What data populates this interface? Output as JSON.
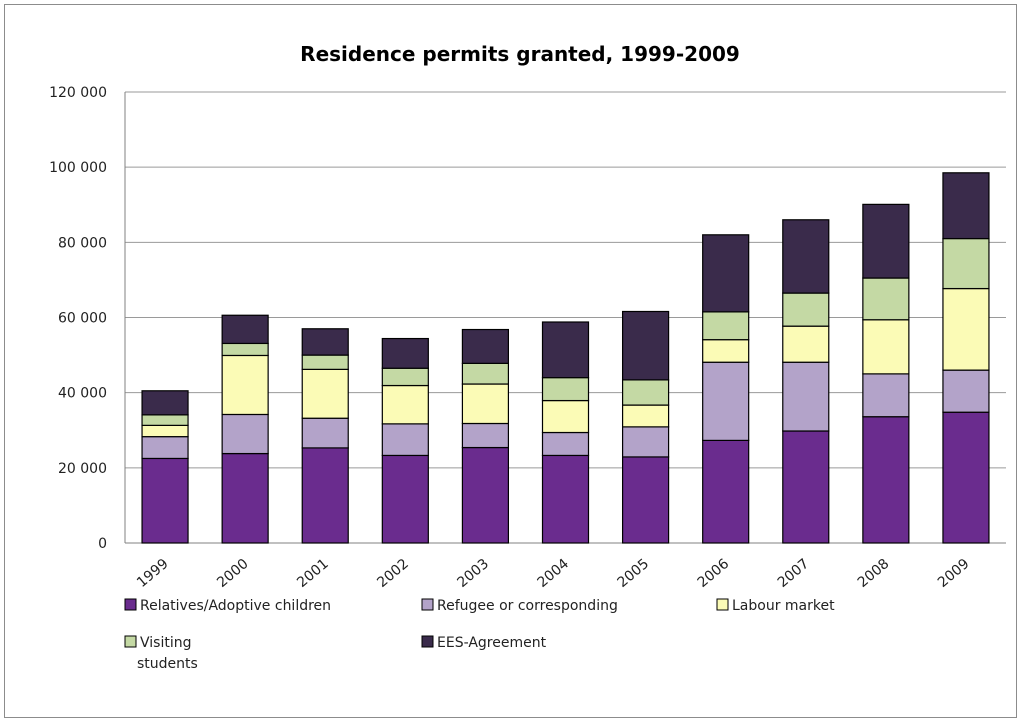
{
  "chart_data": {
    "type": "bar",
    "stacked": true,
    "title": "Residence permits granted, 1999-2009",
    "xlabel": "",
    "ylabel": "",
    "ylim": [
      0,
      120000
    ],
    "yticks": [
      0,
      20000,
      40000,
      60000,
      80000,
      100000,
      120000
    ],
    "ytick_labels": [
      "0",
      "20 000",
      "40 000",
      "60 000",
      "80 000",
      "100 000",
      "120 000"
    ],
    "grid": true,
    "legend_position": "bottom",
    "categories": [
      "1999",
      "2000",
      "2001",
      "2002",
      "2003",
      "2004",
      "2005",
      "2006",
      "2007",
      "2008",
      "2009"
    ],
    "series": [
      {
        "name": "Relatives/Adoptive children",
        "color": "#6a2c8e",
        "values": [
          22500,
          23800,
          25300,
          23300,
          25400,
          23300,
          22900,
          27300,
          29800,
          33600,
          34800
        ]
      },
      {
        "name": "Refugee or corresponding",
        "color": "#b3a3c9",
        "values": [
          5800,
          10400,
          7900,
          8400,
          6400,
          6100,
          8000,
          20800,
          18300,
          11400,
          11200
        ]
      },
      {
        "name": "Labour market",
        "color": "#fbfbb6",
        "values": [
          3000,
          15700,
          13000,
          10200,
          10500,
          8500,
          5800,
          6000,
          9600,
          14400,
          21700
        ]
      },
      {
        "name": "Visiting\nstudents",
        "color": "#c4d9a4",
        "values": [
          2800,
          3200,
          3800,
          4600,
          5500,
          6100,
          6700,
          7400,
          8800,
          11100,
          13300
        ]
      },
      {
        "name": "EES-Agreement",
        "color": "#3a2b4b",
        "values": [
          6400,
          7500,
          7000,
          7900,
          9000,
          14800,
          18200,
          20500,
          19500,
          19600,
          17500
        ]
      }
    ]
  }
}
